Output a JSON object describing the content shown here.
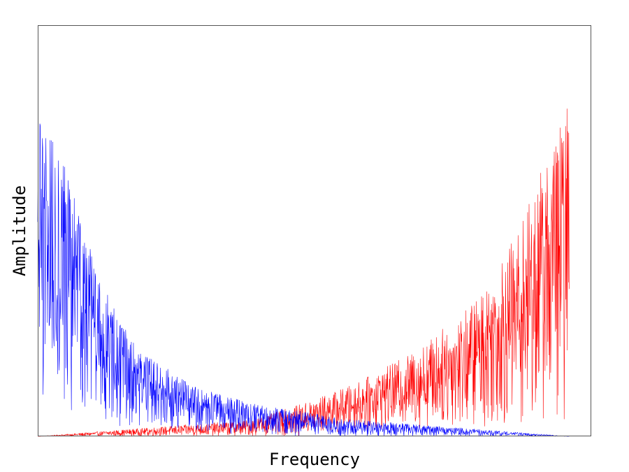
{
  "chart_data": {
    "type": "line",
    "title": "",
    "xlabel": "Frequency",
    "ylabel": "Amplitude",
    "x_ticks_shown": false,
    "y_ticks_shown": false,
    "grid": false,
    "legend": "none",
    "x_range": [
      0,
      1
    ],
    "y_range": [
      0,
      1
    ],
    "series": [
      {
        "color": "#ff0000",
        "envelope": {
          "x": [
            0.0,
            0.1,
            0.2,
            0.3,
            0.4,
            0.5,
            0.6,
            0.7,
            0.8,
            0.85,
            0.9,
            0.94,
            0.97,
            1.0
          ],
          "max": [
            0.0,
            0.01,
            0.02,
            0.03,
            0.04,
            0.08,
            0.13,
            0.2,
            0.3,
            0.38,
            0.49,
            0.62,
            0.72,
            0.81
          ],
          "min": [
            0.0,
            0.0,
            0.0,
            0.0,
            0.0,
            0.0,
            0.01,
            0.02,
            0.02,
            0.02,
            0.02,
            0.03,
            0.03,
            0.03
          ]
        }
      },
      {
        "color": "#0000ff",
        "envelope": {
          "x": [
            0.0,
            0.03,
            0.06,
            0.1,
            0.15,
            0.2,
            0.3,
            0.4,
            0.5,
            0.6,
            0.7,
            0.8,
            0.9,
            1.0
          ],
          "max": [
            0.77,
            0.8,
            0.63,
            0.45,
            0.29,
            0.2,
            0.12,
            0.08,
            0.06,
            0.04,
            0.03,
            0.02,
            0.01,
            0.0
          ],
          "min": [
            0.03,
            0.03,
            0.03,
            0.02,
            0.02,
            0.02,
            0.01,
            0.0,
            0.0,
            0.0,
            0.0,
            0.0,
            0.0,
            0.0
          ]
        }
      }
    ]
  }
}
